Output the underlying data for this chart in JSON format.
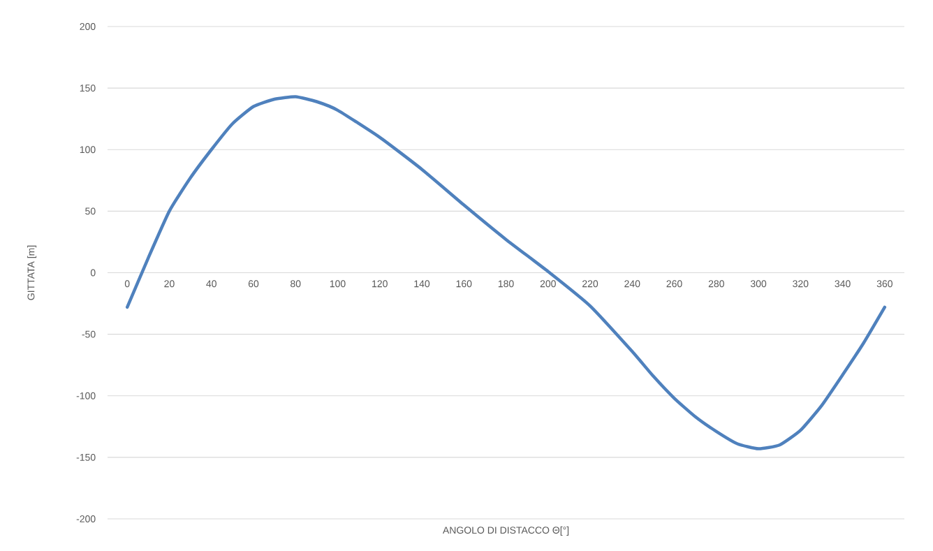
{
  "chart_data": {
    "type": "line",
    "xlabel": "ANGOLO DI DISTACCO Θ[°]",
    "ylabel": "GITTATA [m]",
    "x": [
      0,
      10,
      20,
      30,
      40,
      50,
      60,
      70,
      80,
      90,
      100,
      120,
      140,
      160,
      180,
      200,
      220,
      240,
      250,
      260,
      270,
      280,
      290,
      300,
      310,
      320,
      330,
      340,
      350,
      360
    ],
    "series": [
      {
        "color": "#4f81bd",
        "values": [
          -28,
          12,
          50,
          77,
          100,
          121,
          135,
          141,
          143,
          139,
          132,
          110,
          84,
          55,
          27,
          1,
          -27,
          -64,
          -84,
          -102,
          -117,
          -129,
          -139,
          -143,
          -140,
          -128,
          -108,
          -83,
          -57,
          -28
        ]
      }
    ],
    "xlim": [
      0,
      360
    ],
    "xticks": [
      0,
      20,
      40,
      60,
      80,
      100,
      120,
      140,
      160,
      180,
      200,
      220,
      240,
      260,
      280,
      300,
      320,
      340,
      360
    ],
    "ylim": [
      -200,
      200
    ],
    "yticks": [
      -200,
      -150,
      -100,
      -50,
      0,
      50,
      100,
      150,
      200
    ],
    "grid": "y",
    "marker": "none",
    "line_style": "solid"
  }
}
